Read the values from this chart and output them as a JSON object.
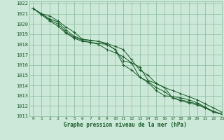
{
  "title": "Graphe pression niveau de la mer (hPa)",
  "xlim": [
    -0.5,
    23
  ],
  "ylim": [
    1011,
    1022.2
  ],
  "yticks": [
    1011,
    1012,
    1013,
    1014,
    1015,
    1016,
    1017,
    1018,
    1019,
    1020,
    1021,
    1022
  ],
  "xticks": [
    0,
    1,
    2,
    3,
    4,
    5,
    6,
    7,
    8,
    9,
    10,
    11,
    12,
    13,
    14,
    15,
    16,
    17,
    18,
    19,
    20,
    21,
    22,
    23
  ],
  "bg_color": "#cce8d8",
  "grid_color": "#88bb99",
  "line_color": "#1a5c2a",
  "xlabel_color": "#1a5c2a",
  "series": [
    [
      1021.5,
      1021.0,
      1020.8,
      1020.3,
      1019.7,
      1019.2,
      1018.5,
      1018.4,
      1018.3,
      1018.0,
      1017.5,
      1016.4,
      1016.2,
      1015.8,
      1014.5,
      1014.2,
      1013.8,
      1012.8,
      1012.6,
      1012.4,
      1012.2,
      1011.8,
      1011.5,
      1011.2
    ],
    [
      1021.5,
      1020.9,
      1020.3,
      1019.8,
      1019.1,
      1018.6,
      1018.3,
      1018.2,
      1018.1,
      1018.0,
      1017.5,
      1016.0,
      1015.5,
      1014.8,
      1014.3,
      1013.5,
      1013.0,
      1012.9,
      1012.8,
      1012.6,
      1012.3,
      1011.9,
      1011.4,
      1011.2
    ],
    [
      1021.5,
      1021.0,
      1020.5,
      1020.2,
      1019.4,
      1018.8,
      1018.5,
      1018.4,
      1018.3,
      1018.1,
      1017.8,
      1017.5,
      1016.5,
      1015.5,
      1015.0,
      1014.2,
      1013.8,
      1013.5,
      1013.2,
      1012.9,
      1012.6,
      1012.2,
      1011.8,
      1011.4
    ],
    [
      1021.5,
      1021.0,
      1020.4,
      1020.0,
      1019.2,
      1018.7,
      1018.4,
      1018.2,
      1018.0,
      1017.5,
      1017.2,
      1016.8,
      1016.2,
      1014.8,
      1014.4,
      1013.8,
      1013.4,
      1012.8,
      1012.5,
      1012.3,
      1012.1,
      1011.8,
      1011.4,
      1011.2
    ]
  ]
}
